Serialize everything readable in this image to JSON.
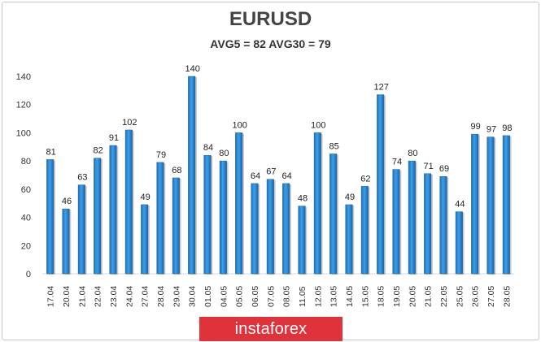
{
  "chart_data": {
    "type": "bar",
    "title": "EURUSD",
    "subtitle": "AVG5 = 82 AVG30 = 79",
    "categories": [
      "17.04",
      "20.04",
      "21.04",
      "22.04",
      "23.04",
      "24.04",
      "27.04",
      "28.04",
      "29.04",
      "30.04",
      "01.05",
      "04.05",
      "05.05",
      "06.05",
      "07.05",
      "08.05",
      "11.05",
      "12.05",
      "13.05",
      "14.05",
      "15.05",
      "18.05",
      "19.05",
      "20.05",
      "21.05",
      "22.05",
      "25.05",
      "26.05",
      "27.05",
      "28.05"
    ],
    "values": [
      81,
      46,
      63,
      82,
      91,
      102,
      49,
      79,
      68,
      140,
      84,
      80,
      100,
      64,
      67,
      64,
      48,
      100,
      85,
      49,
      62,
      127,
      74,
      80,
      71,
      69,
      44,
      99,
      97,
      98
    ],
    "yticks": [
      0,
      20,
      40,
      60,
      80,
      100,
      120,
      140
    ],
    "ylim": [
      0,
      140
    ],
    "grid": false,
    "bar_color": "#2e8fd8"
  },
  "watermark": "instaforex"
}
